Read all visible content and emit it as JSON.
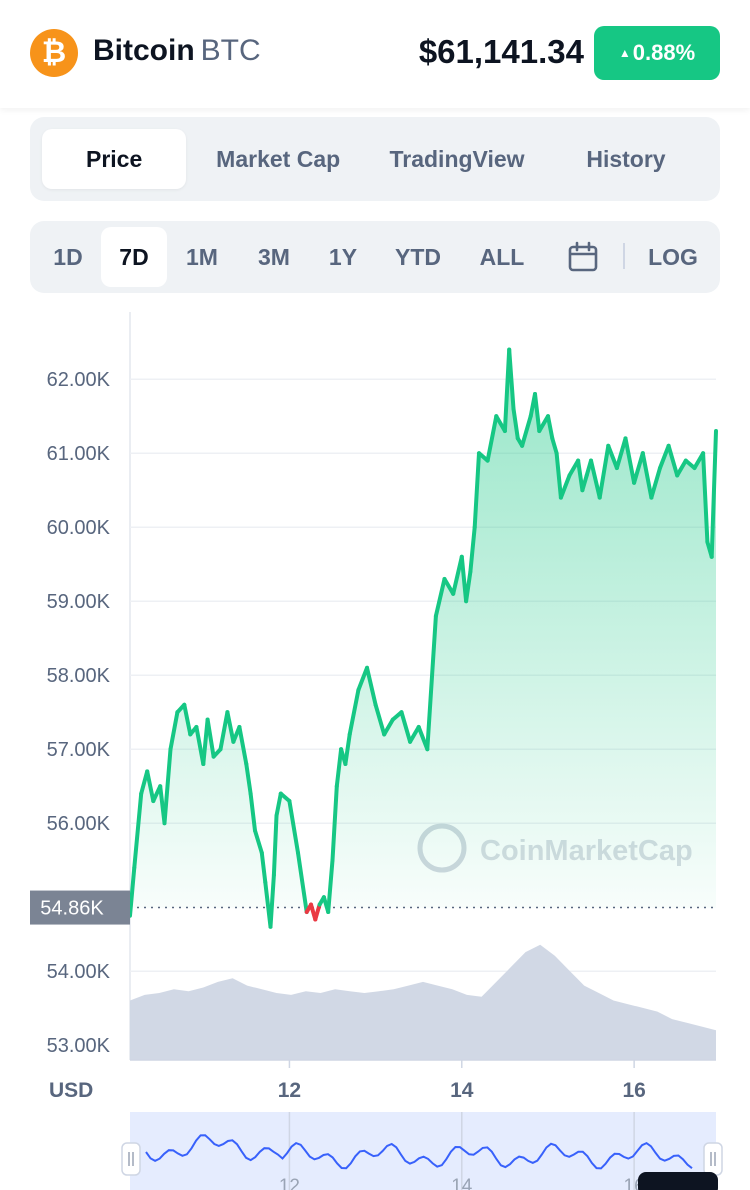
{
  "header": {
    "coin_logo_glyph": "₿",
    "coin_name": "Bitcoin",
    "coin_symbol": "BTC",
    "price": "$61,141.34",
    "change": "0.88%",
    "change_color": "#16c784"
  },
  "tabs": [
    {
      "label": "Price",
      "active": true
    },
    {
      "label": "Market Cap",
      "active": false
    },
    {
      "label": "TradingView",
      "active": false
    },
    {
      "label": "History",
      "active": false
    }
  ],
  "ranges": [
    {
      "label": "1D",
      "active": false
    },
    {
      "label": "7D",
      "active": true
    },
    {
      "label": "1M",
      "active": false
    },
    {
      "label": "3M",
      "active": false
    },
    {
      "label": "1Y",
      "active": false
    },
    {
      "label": "YTD",
      "active": false
    },
    {
      "label": "ALL",
      "active": false
    }
  ],
  "calendar_icon": "calendar-icon",
  "log_label": "LOG",
  "chart_data": {
    "type": "line",
    "title": "",
    "currency_label": "USD",
    "ylim": [
      52800,
      62800
    ],
    "y_ticks": [
      {
        "value": 53000,
        "label": "53.00K"
      },
      {
        "value": 54000,
        "label": "54.00K"
      },
      {
        "value": 56000,
        "label": "56.00K"
      },
      {
        "value": 57000,
        "label": "57.00K"
      },
      {
        "value": 58000,
        "label": "58.00K"
      },
      {
        "value": 59000,
        "label": "59.00K"
      },
      {
        "value": 60000,
        "label": "60.00K"
      },
      {
        "value": 61000,
        "label": "61.00K"
      },
      {
        "value": 62000,
        "label": "62.00K"
      }
    ],
    "xlim": [
      10.15,
      16.95
    ],
    "x_ticks": [
      {
        "value": 12,
        "label": "12"
      },
      {
        "value": 14,
        "label": "14"
      },
      {
        "value": 16,
        "label": "16"
      }
    ],
    "baseline": {
      "value": 54860,
      "label": "54.86K"
    },
    "watermark": "CoinMarketCap",
    "up_color": "#16c784",
    "down_color": "#ea3943",
    "volume_color": "#cfd6e4",
    "series": [
      {
        "x": [
          10.15,
          10.2,
          10.28,
          10.35,
          10.42,
          10.5,
          10.55,
          10.62,
          10.7,
          10.78,
          10.85,
          10.92,
          11.0,
          11.05,
          11.12,
          11.2,
          11.28,
          11.35,
          11.42,
          11.5,
          11.55,
          11.6,
          11.68,
          11.72,
          11.78,
          11.82,
          11.85,
          11.9,
          12.0,
          12.1,
          12.2,
          12.25,
          12.3,
          12.35,
          12.4,
          12.45,
          12.5,
          12.55,
          12.6,
          12.65,
          12.7,
          12.8,
          12.9,
          13.0,
          13.1,
          13.2,
          13.3,
          13.4,
          13.5,
          13.6,
          13.7,
          13.8,
          13.9,
          14.0,
          14.05,
          14.1,
          14.15,
          14.2,
          14.3,
          14.4,
          14.5,
          14.55,
          14.6,
          14.65,
          14.7,
          14.8,
          14.85,
          14.9,
          15.0,
          15.05,
          15.1,
          15.15,
          15.25,
          15.35,
          15.4,
          15.45,
          15.5,
          15.6,
          15.7,
          15.8,
          15.9,
          16.0,
          16.1,
          16.2,
          16.3,
          16.4,
          16.5,
          16.6,
          16.7,
          16.8,
          16.85,
          16.9,
          16.95
        ],
        "values": [
          54.75,
          55.4,
          56.4,
          56.7,
          56.3,
          56.5,
          56.0,
          57.0,
          57.5,
          57.6,
          57.2,
          57.3,
          56.8,
          57.4,
          56.9,
          57.0,
          57.5,
          57.1,
          57.3,
          56.8,
          56.4,
          55.9,
          55.6,
          55.2,
          54.6,
          55.3,
          56.1,
          56.4,
          56.3,
          55.6,
          54.8,
          54.9,
          54.7,
          54.9,
          55.0,
          54.8,
          55.5,
          56.5,
          57.0,
          56.8,
          57.2,
          57.8,
          58.1,
          57.6,
          57.2,
          57.4,
          57.5,
          57.1,
          57.3,
          57.0,
          58.8,
          59.3,
          59.1,
          59.6,
          59.0,
          59.4,
          60.0,
          61.0,
          60.9,
          61.5,
          61.3,
          62.4,
          61.6,
          61.2,
          61.1,
          61.5,
          61.8,
          61.3,
          61.5,
          61.2,
          61.0,
          60.4,
          60.7,
          60.9,
          60.5,
          60.7,
          60.9,
          60.4,
          61.1,
          60.8,
          61.2,
          60.6,
          61.0,
          60.4,
          60.8,
          61.1,
          60.7,
          60.9,
          60.8,
          61.0,
          59.8,
          59.6,
          61.3
        ]
      }
    ],
    "volume": [
      0.32,
      0.35,
      0.36,
      0.38,
      0.37,
      0.39,
      0.42,
      0.44,
      0.4,
      0.38,
      0.36,
      0.35,
      0.37,
      0.36,
      0.38,
      0.37,
      0.36,
      0.37,
      0.38,
      0.4,
      0.42,
      0.4,
      0.38,
      0.35,
      0.34,
      0.42,
      0.5,
      0.58,
      0.62,
      0.56,
      0.48,
      0.4,
      0.36,
      0.32,
      0.3,
      0.28,
      0.26,
      0.22,
      0.2,
      0.18,
      0.16
    ]
  }
}
